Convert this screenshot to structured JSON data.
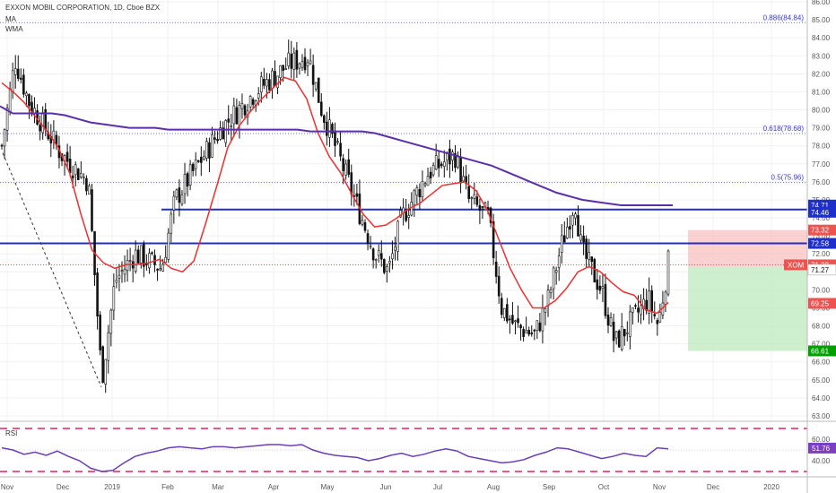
{
  "legend": {
    "title": "EXXON MOBIL CORPORATION, 1D, Cboe BZX",
    "ma": "MA",
    "wma": "WMA",
    "rsi": "RSI"
  },
  "chart_data": {
    "type": "candlestick",
    "symbol": "XOM",
    "ylim": [
      62.7,
      86.1
    ],
    "y_ticks": [
      "63.00",
      "64.00",
      "65.00",
      "66.00",
      "67.00",
      "68.00",
      "69.00",
      "70.00",
      "71.00",
      "72.00",
      "73.00",
      "74.00",
      "75.00",
      "76.00",
      "77.00",
      "78.00",
      "79.00",
      "80.00",
      "81.00",
      "82.00",
      "83.00",
      "84.00",
      "85.00",
      "86.00"
    ],
    "x_ticks": [
      "Nov",
      "Dec",
      "2019",
      "Feb",
      "Mar",
      "Apr",
      "May",
      "Jun",
      "Jul",
      "Aug",
      "Sep",
      "Oct",
      "Nov",
      "Dec",
      "2020"
    ],
    "fib_levels": [
      {
        "label": "0.886(84.84)",
        "value": 84.84
      },
      {
        "label": "0.618(78.68)",
        "value": 78.68
      },
      {
        "label": "0.5(75.96)",
        "value": 75.96
      }
    ],
    "horizontal_lines": [
      74.46,
      72.58
    ],
    "price_badges": [
      {
        "text": "74.71",
        "value": 74.71,
        "color": "#1f2fcc"
      },
      {
        "text": "74.46",
        "value": 74.46,
        "color": "#1f2fcc"
      },
      {
        "text": "73.32",
        "value": 73.32,
        "color": "#ef5350"
      },
      {
        "text": "72.58",
        "value": 72.58,
        "color": "#1f2fcc"
      },
      {
        "text": "XOM",
        "value": 71.39,
        "color": "#ef5350"
      },
      {
        "text": "71.39",
        "value": 71.39,
        "color": "#ef5350"
      },
      {
        "text": "71.27",
        "value": 71.27,
        "color": "#ffffff"
      },
      {
        "text": "69.25",
        "value": 69.25,
        "color": "#ef5350"
      },
      {
        "text": "66.61",
        "value": 66.61,
        "color": "#00a000"
      }
    ],
    "position": {
      "entry": 71.27,
      "stop": 73.32,
      "target": 66.61
    },
    "ma_series": [
      81.5,
      81.0,
      80.4,
      79.6,
      78.8,
      77.9,
      76.5,
      74.2,
      72.2,
      71.5,
      71.2,
      71.4,
      71.4,
      71.5,
      71.7,
      71.2,
      71.0,
      71.6,
      73.6,
      75.7,
      77.9,
      79.1,
      79.9,
      80.6,
      81.2,
      81.8,
      81.6,
      80.6,
      78.7,
      77.4,
      76.5,
      75.3,
      74.2,
      73.5,
      73.6,
      74.0,
      74.5,
      74.8,
      75.3,
      75.8,
      75.9,
      76.0,
      75.5,
      74.4,
      72.8,
      71.2,
      70.0,
      69.0,
      69.0,
      69.4,
      70.1,
      71.0,
      71.3,
      71.0,
      70.4,
      69.9,
      69.7,
      68.9,
      68.7,
      69.3
    ],
    "wma_series": [
      80.2,
      79.8,
      79.8,
      79.8,
      79.8,
      79.7,
      79.5,
      79.3,
      79.2,
      79.1,
      79.0,
      79.0,
      79.0,
      78.9,
      78.9,
      78.9,
      78.9,
      78.9,
      78.9,
      78.9,
      78.9,
      78.9,
      78.9,
      78.9,
      78.8,
      78.8,
      78.8,
      78.8,
      78.8,
      78.7,
      78.5,
      78.3,
      78.1,
      77.9,
      77.7,
      77.5,
      77.3,
      77.1,
      76.9,
      76.6,
      76.3,
      76.0,
      75.7,
      75.4,
      75.2,
      75.0,
      74.9,
      74.8,
      74.7,
      74.7,
      74.7,
      74.7,
      74.7
    ],
    "rsi_series": [
      52,
      50,
      46,
      48,
      45,
      49,
      44,
      40,
      33,
      30,
      31,
      38,
      44,
      47,
      49,
      52,
      53,
      52,
      51,
      53,
      53,
      52,
      53,
      54,
      55,
      55,
      54,
      55,
      50,
      47,
      45,
      44,
      43,
      40,
      42,
      45,
      47,
      44,
      46,
      49,
      51,
      49,
      44,
      42,
      40,
      38,
      39,
      41,
      45,
      48,
      52,
      51,
      48,
      45,
      42,
      44,
      47,
      45,
      44,
      52,
      51
    ],
    "rsi_levels": [
      70,
      30
    ],
    "rsi_badges": [
      {
        "text": "60.00",
        "value": 60
      },
      {
        "text": "51.76",
        "value": 51.76
      },
      {
        "text": "40.00",
        "value": 40
      }
    ]
  }
}
